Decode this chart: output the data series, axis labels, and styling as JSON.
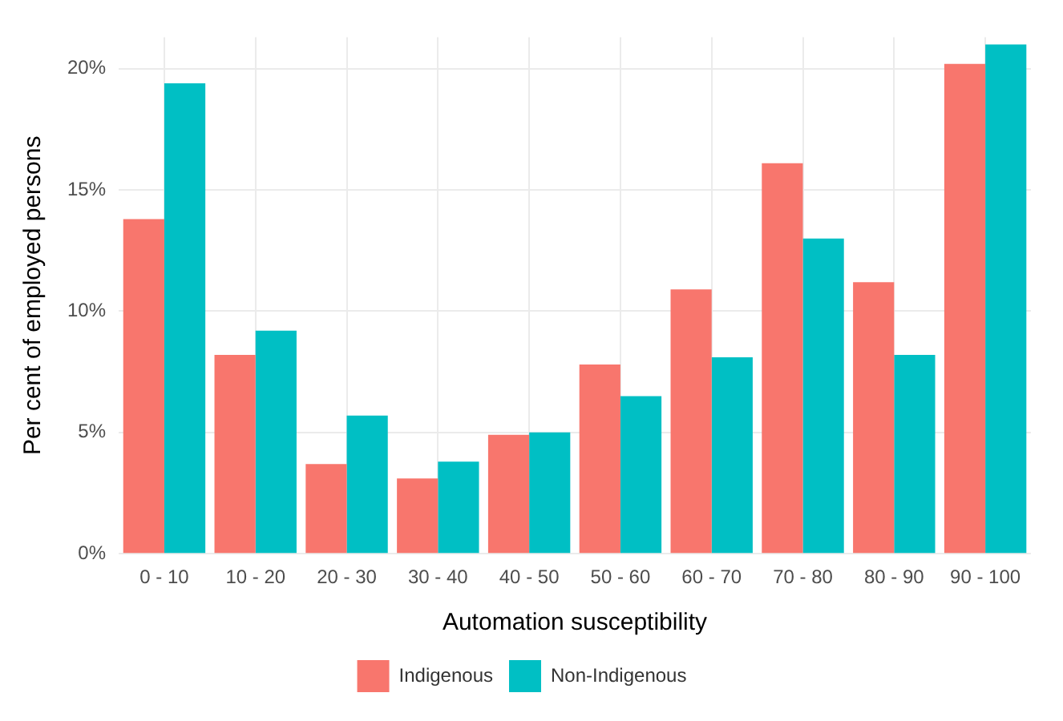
{
  "chart_data": {
    "type": "bar",
    "xlabel": "Automation susceptibility",
    "ylabel": "Per cent of employed persons",
    "categories": [
      "0 - 10",
      "10 - 20",
      "20 - 30",
      "30 - 40",
      "40 - 50",
      "50 - 60",
      "60 - 70",
      "70 - 80",
      "80 - 90",
      "90 - 100"
    ],
    "series": [
      {
        "name": "Indigenous",
        "color": "#f8766d",
        "values": [
          13.8,
          8.2,
          3.7,
          3.1,
          4.9,
          7.8,
          10.9,
          16.1,
          11.2,
          20.2
        ]
      },
      {
        "name": "Non-Indigenous",
        "color": "#00bfc4",
        "values": [
          19.4,
          9.2,
          5.7,
          3.8,
          5.0,
          6.5,
          8.1,
          13.0,
          8.2,
          21.0
        ]
      }
    ],
    "ylim": [
      0,
      21.3
    ],
    "yticks": [
      {
        "value": 0,
        "label": "0%"
      },
      {
        "value": 5,
        "label": "5%"
      },
      {
        "value": 10,
        "label": "10%"
      },
      {
        "value": 15,
        "label": "15%"
      },
      {
        "value": 20,
        "label": "20%"
      }
    ],
    "grid": true,
    "legend": "bottom"
  }
}
